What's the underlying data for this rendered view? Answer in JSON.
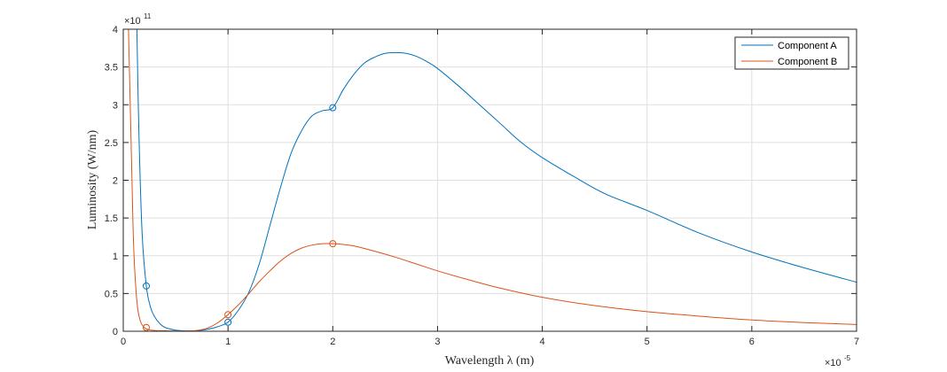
{
  "chart_data": {
    "type": "line",
    "xlabel": "Wavelength λ (m)",
    "ylabel": "Luminosity (W/nm)",
    "x_exponent_base": "×10",
    "x_exponent_power": "-5",
    "y_exponent_base": "×10",
    "y_exponent_power": "11",
    "xlim": [
      0,
      7e-05
    ],
    "ylim": [
      0,
      400000000000.0
    ],
    "xticks": [
      0,
      1e-05,
      2e-05,
      3e-05,
      4e-05,
      5e-05,
      6e-05,
      7e-05
    ],
    "xtick_labels": [
      "0",
      "1",
      "2",
      "3",
      "4",
      "5",
      "6",
      "7"
    ],
    "yticks": [
      0,
      50000000000.0,
      100000000000.0,
      150000000000.0,
      200000000000.0,
      250000000000.0,
      300000000000.0,
      350000000000.0,
      400000000000.0
    ],
    "ytick_labels": [
      "0",
      "0.5",
      "1",
      "1.5",
      "2",
      "2.5",
      "3",
      "3.5",
      "4"
    ],
    "grid": true,
    "legend_location": "top-right",
    "series": [
      {
        "name": "Component A",
        "color": "#0072BD",
        "x": [
          1.3e-06,
          1.5e-06,
          1.8e-06,
          2.2e-06,
          2.6e-06,
          3e-06,
          3.5e-06,
          4e-06,
          5e-06,
          6e-06,
          7e-06,
          8e-06,
          9e-06,
          1e-05,
          1.1e-05,
          1.2e-05,
          1.3e-05,
          1.4e-05,
          1.5e-05,
          1.6e-05,
          1.7e-05,
          1.8e-05,
          1.9e-05,
          2e-05,
          2.1e-05,
          2.2e-05,
          2.3e-05,
          2.4e-05,
          2.5e-05,
          2.6e-05,
          2.7e-05,
          2.8e-05,
          2.9e-05,
          3e-05,
          3.2e-05,
          3.4e-05,
          3.6e-05,
          3.8e-05,
          4e-05,
          4.3e-05,
          4.6e-05,
          5e-05,
          5.5e-05,
          6e-05,
          6.5e-05,
          7e-05
        ],
        "y": [
          400000000000.0,
          260000000000.0,
          130000000000.0,
          60000000000.0,
          32000000000.0,
          19000000000.0,
          10000000000.0,
          5000000000.0,
          1500000000.0,
          500000000.0,
          800000000.0,
          2500000000.0,
          6000000000.0,
          12000000000.0,
          28000000000.0,
          52000000000.0,
          90000000000.0,
          140000000000.0,
          190000000000.0,
          235000000000.0,
          265000000000.0,
          285000000000.0,
          292000000000.0,
          296000000000.0,
          320000000000.0,
          340000000000.0,
          355000000000.0,
          363000000000.0,
          368000000000.0,
          369000000000.0,
          368000000000.0,
          364000000000.0,
          357000000000.0,
          348000000000.0,
          325000000000.0,
          300000000000.0,
          275000000000.0,
          250000000000.0,
          230000000000.0,
          205000000000.0,
          182000000000.0,
          160000000000.0,
          130000000000.0,
          105000000000.0,
          84000000000.0,
          65000000000.0
        ],
        "markers_x": [
          2.2e-06,
          1e-05,
          2e-05
        ],
        "markers_y": [
          60000000000.0,
          12000000000.0,
          296000000000.0
        ]
      },
      {
        "name": "Component B",
        "color": "#D95319",
        "x": [
          5e-07,
          8e-07,
          1e-06,
          1.3e-06,
          1.6e-06,
          2e-06,
          2.5e-06,
          3e-06,
          4e-06,
          5e-06,
          6e-06,
          7e-06,
          8e-06,
          9e-06,
          1e-05,
          1.1e-05,
          1.2e-05,
          1.3e-05,
          1.4e-05,
          1.5e-05,
          1.6e-05,
          1.7e-05,
          1.8e-05,
          1.9e-05,
          2e-05,
          2.1e-05,
          2.2e-05,
          2.4e-05,
          2.6e-05,
          2.8e-05,
          3e-05,
          3.3e-05,
          3.6e-05,
          4e-05,
          4.5e-05,
          5e-05,
          5.5e-05,
          6e-05,
          6.5e-05,
          7e-05
        ],
        "y": [
          400000000000.0,
          220000000000.0,
          110000000000.0,
          40000000000.0,
          15000000000.0,
          5000000000.0,
          2000000000.0,
          1000000000.0,
          600000000.0,
          300000000.0,
          200000000.0,
          1000000000.0,
          4000000000.0,
          11000000000.0,
          22000000000.0,
          35000000000.0,
          50000000000.0,
          66000000000.0,
          80000000000.0,
          93000000000.0,
          103000000000.0,
          110000000000.0,
          114000000000.0,
          116000000000.0,
          116000000000.0,
          115000000000.0,
          113000000000.0,
          106000000000.0,
          98000000000.0,
          89000000000.0,
          80000000000.0,
          68000000000.0,
          57000000000.0,
          45000000000.0,
          34000000000.0,
          26000000000.0,
          20000000000.0,
          15000000000.0,
          11500000000.0,
          9000000000.0
        ],
        "markers_x": [
          2.2e-06,
          1e-05,
          2e-05
        ],
        "markers_y": [
          5000000000.0,
          22000000000.0,
          116000000000.0
        ]
      }
    ]
  }
}
